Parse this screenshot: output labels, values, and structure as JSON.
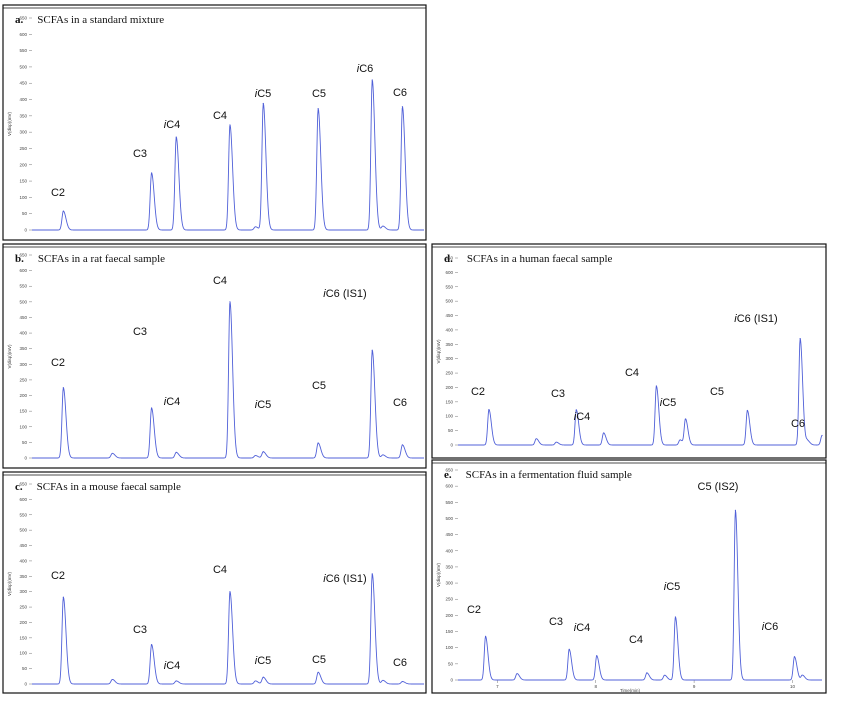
{
  "chart_data": [
    {
      "type": "line",
      "panel": "a.",
      "title": "SCFAs in a standard mixture",
      "ylabel": "V(disp)(mV)",
      "xlabel": "",
      "ylim": [
        0,
        650
      ],
      "yticks": [
        0,
        50,
        100,
        150,
        200,
        250,
        300,
        350,
        400,
        450,
        500,
        550,
        600,
        650
      ],
      "xlim": [
        0,
        1
      ],
      "xticks": [],
      "xticklabels": [],
      "peaks": [
        {
          "label": "C2",
          "x": 0.08,
          "y": 58
        },
        {
          "label": "C3",
          "x": 0.305,
          "y": 175
        },
        {
          "label": "iC4",
          "x": 0.368,
          "y": 285
        },
        {
          "label": "C4",
          "x": 0.505,
          "y": 322
        },
        {
          "label": "iC5",
          "x": 0.59,
          "y": 388
        },
        {
          "label": "C5",
          "x": 0.73,
          "y": 372
        },
        {
          "label": "iC6",
          "x": 0.868,
          "y": 460
        },
        {
          "label": "C6",
          "x": 0.945,
          "y": 378
        }
      ],
      "minor_peaks": [
        {
          "x": 0.57,
          "y": 10
        },
        {
          "x": 0.895,
          "y": 12
        }
      ]
    },
    {
      "type": "line",
      "panel": "b.",
      "title": "SCFAs in a rat faecal sample",
      "ylabel": "V(disp)(mV)",
      "xlabel": "",
      "ylim": [
        0,
        650
      ],
      "yticks": [
        0,
        50,
        100,
        150,
        200,
        250,
        300,
        350,
        400,
        450,
        500,
        550,
        600,
        650
      ],
      "xlim": [
        0,
        1
      ],
      "xticks": [],
      "xticklabels": [],
      "peaks": [
        {
          "label": "C2",
          "x": 0.08,
          "y": 225
        },
        {
          "label": "C3",
          "x": 0.305,
          "y": 160
        },
        {
          "label": "iC4",
          "x": 0.368,
          "y": 18
        },
        {
          "label": "C4",
          "x": 0.505,
          "y": 500
        },
        {
          "label": "iC5",
          "x": 0.59,
          "y": 20
        },
        {
          "label": "C5",
          "x": 0.73,
          "y": 48
        },
        {
          "label": "iC6 (IS1)",
          "x": 0.868,
          "y": 345
        },
        {
          "label": "C6",
          "x": 0.945,
          "y": 42
        }
      ],
      "minor_peaks": [
        {
          "x": 0.205,
          "y": 15
        },
        {
          "x": 0.57,
          "y": 8
        },
        {
          "x": 0.895,
          "y": 10
        }
      ]
    },
    {
      "type": "line",
      "panel": "c.",
      "title": "SCFAs in a mouse faecal sample",
      "ylabel": "V(disp)(mV)",
      "xlabel": "",
      "ylim": [
        0,
        650
      ],
      "yticks": [
        0,
        50,
        100,
        150,
        200,
        250,
        300,
        350,
        400,
        450,
        500,
        550,
        600,
        650
      ],
      "xlim": [
        0,
        1
      ],
      "xticks": [],
      "xticklabels": [],
      "peaks": [
        {
          "label": "C2",
          "x": 0.08,
          "y": 282
        },
        {
          "label": "C3",
          "x": 0.305,
          "y": 128
        },
        {
          "label": "iC4",
          "x": 0.368,
          "y": 10
        },
        {
          "label": "C4",
          "x": 0.505,
          "y": 300
        },
        {
          "label": "iC5",
          "x": 0.59,
          "y": 22
        },
        {
          "label": "C5",
          "x": 0.73,
          "y": 38
        },
        {
          "label": "iC6 (IS1)",
          "x": 0.868,
          "y": 358
        },
        {
          "label": "C6",
          "x": 0.945,
          "y": 8
        }
      ],
      "minor_peaks": [
        {
          "x": 0.205,
          "y": 15
        },
        {
          "x": 0.57,
          "y": 10
        },
        {
          "x": 0.895,
          "y": 12
        }
      ]
    },
    {
      "type": "line",
      "panel": "d.",
      "title": "SCFAs in a human faecal sample",
      "ylabel": "V(disp)(mV)",
      "xlabel": "",
      "ylim": [
        0,
        650
      ],
      "yticks": [
        0,
        50,
        100,
        150,
        200,
        250,
        300,
        350,
        400,
        450,
        500,
        550,
        600,
        650
      ],
      "xlim": [
        0,
        1
      ],
      "xticks": [],
      "xticklabels": [],
      "peaks": [
        {
          "label": "C2",
          "x": 0.085,
          "y": 123
        },
        {
          "label": "C3",
          "x": 0.325,
          "y": 122
        },
        {
          "label": "iC4",
          "x": 0.4,
          "y": 42
        },
        {
          "label": "C4",
          "x": 0.545,
          "y": 205
        },
        {
          "label": "iC5",
          "x": 0.625,
          "y": 90
        },
        {
          "label": "C5",
          "x": 0.795,
          "y": 120
        },
        {
          "label": "iC6 (IS1)",
          "x": 0.94,
          "y": 370
        },
        {
          "label": "C6",
          "x": 1.0,
          "y": 33
        }
      ],
      "minor_peaks": [
        {
          "x": 0.215,
          "y": 22
        },
        {
          "x": 0.27,
          "y": 10
        },
        {
          "x": 0.61,
          "y": 18
        },
        {
          "x": 0.96,
          "y": 15
        }
      ]
    },
    {
      "type": "line",
      "panel": "e.",
      "title": "SCFAs in a fermentation fluid sample",
      "ylabel": "V(disp)(mV)",
      "xlabel": "Time(min)",
      "ylim": [
        0,
        650
      ],
      "yticks": [
        0,
        50,
        100,
        150,
        200,
        250,
        300,
        350,
        400,
        450,
        500,
        550,
        600,
        650
      ],
      "xlim": [
        6.6,
        10.3
      ],
      "xticks": [
        7,
        8,
        9,
        10
      ],
      "xticklabels": [
        "7",
        "8",
        "9",
        "10"
      ],
      "peaks": [
        {
          "label": "C2",
          "x": 6.88,
          "y": 135
        },
        {
          "label": "C3",
          "x": 7.73,
          "y": 95
        },
        {
          "label": "iC4",
          "x": 8.01,
          "y": 75
        },
        {
          "label": "C4",
          "x": 8.52,
          "y": 22
        },
        {
          "label": "iC5",
          "x": 8.81,
          "y": 195
        },
        {
          "label": "C5 (IS2)",
          "x": 9.42,
          "y": 525
        },
        {
          "label": "iC6",
          "x": 10.02,
          "y": 72
        }
      ],
      "minor_peaks": [
        {
          "x": 7.2,
          "y": 20
        },
        {
          "x": 8.7,
          "y": 15
        },
        {
          "x": 10.1,
          "y": 15
        }
      ]
    }
  ]
}
